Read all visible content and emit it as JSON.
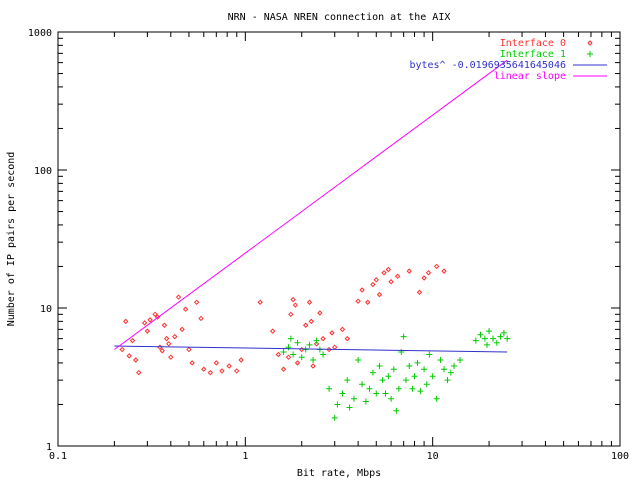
{
  "chart_data": {
    "type": "scatter",
    "title": "NRN - NASA NREN connection at the AIX",
    "xlabel": "Bit rate, Mbps",
    "ylabel": "Number of IP pairs per second",
    "x_scale": "log",
    "y_scale": "log",
    "xlim": [
      0.1,
      100
    ],
    "ylim": [
      1,
      1000
    ],
    "x_ticks": [
      {
        "value": 0.1,
        "label": "0.1"
      },
      {
        "value": 1,
        "label": "1"
      },
      {
        "value": 10,
        "label": "10"
      },
      {
        "value": 100,
        "label": "100"
      }
    ],
    "y_ticks": [
      {
        "value": 1,
        "label": "1"
      },
      {
        "value": 10,
        "label": "10"
      },
      {
        "value": 100,
        "label": "100"
      },
      {
        "value": 1000,
        "label": "1000"
      }
    ],
    "legend_position": "top-right",
    "series": [
      {
        "name": "Interface 0",
        "kind": "points",
        "marker": "diamond",
        "color": "#ff3030",
        "points": [
          [
            0.22,
            5.0
          ],
          [
            0.23,
            8.0
          ],
          [
            0.24,
            4.5
          ],
          [
            0.25,
            5.8
          ],
          [
            0.26,
            4.2
          ],
          [
            0.27,
            3.4
          ],
          [
            0.29,
            7.8
          ],
          [
            0.3,
            6.8
          ],
          [
            0.31,
            8.2
          ],
          [
            0.33,
            9.0
          ],
          [
            0.34,
            8.6
          ],
          [
            0.35,
            5.2
          ],
          [
            0.36,
            4.9
          ],
          [
            0.37,
            7.5
          ],
          [
            0.38,
            6.0
          ],
          [
            0.39,
            5.5
          ],
          [
            0.4,
            4.4
          ],
          [
            0.42,
            6.2
          ],
          [
            0.44,
            12.0
          ],
          [
            0.46,
            7.0
          ],
          [
            0.48,
            9.8
          ],
          [
            0.5,
            5.0
          ],
          [
            0.52,
            4.0
          ],
          [
            0.55,
            11.0
          ],
          [
            0.58,
            8.4
          ],
          [
            0.6,
            3.6
          ],
          [
            0.65,
            3.4
          ],
          [
            0.7,
            4.0
          ],
          [
            0.75,
            3.5
          ],
          [
            0.82,
            3.8
          ],
          [
            0.9,
            3.5
          ],
          [
            0.95,
            4.2
          ],
          [
            1.2,
            11.0
          ],
          [
            1.4,
            6.8
          ],
          [
            1.5,
            4.6
          ],
          [
            1.6,
            3.6
          ],
          [
            1.7,
            4.4
          ],
          [
            1.75,
            9.0
          ],
          [
            1.8,
            11.5
          ],
          [
            1.85,
            10.5
          ],
          [
            1.9,
            4.0
          ],
          [
            2.0,
            5.0
          ],
          [
            2.1,
            7.5
          ],
          [
            2.2,
            11.0
          ],
          [
            2.25,
            8.0
          ],
          [
            2.3,
            3.8
          ],
          [
            2.4,
            5.5
          ],
          [
            2.5,
            9.2
          ],
          [
            2.6,
            6.0
          ],
          [
            2.8,
            5.0
          ],
          [
            2.9,
            6.6
          ],
          [
            3.0,
            5.2
          ],
          [
            3.3,
            7.0
          ],
          [
            3.5,
            6.0
          ],
          [
            4.0,
            11.2
          ],
          [
            4.2,
            13.5
          ],
          [
            4.5,
            11.0
          ],
          [
            4.8,
            14.8
          ],
          [
            5.0,
            16.0
          ],
          [
            5.2,
            12.5
          ],
          [
            5.5,
            18.0
          ],
          [
            5.8,
            19.0
          ],
          [
            6.0,
            15.5
          ],
          [
            6.5,
            17.0
          ],
          [
            7.5,
            18.5
          ],
          [
            8.5,
            13.0
          ],
          [
            9.0,
            16.5
          ],
          [
            9.5,
            18.0
          ],
          [
            10.5,
            20.0
          ],
          [
            11.5,
            18.5
          ]
        ]
      },
      {
        "name": "Interface 1",
        "kind": "points",
        "marker": "plus",
        "color": "#00cc00",
        "points": [
          [
            1.6,
            4.8
          ],
          [
            1.7,
            5.2
          ],
          [
            1.75,
            6.0
          ],
          [
            1.8,
            4.6
          ],
          [
            1.9,
            5.6
          ],
          [
            2.0,
            4.4
          ],
          [
            2.1,
            5.0
          ],
          [
            2.2,
            5.4
          ],
          [
            2.3,
            4.2
          ],
          [
            2.4,
            5.8
          ],
          [
            2.5,
            5.0
          ],
          [
            2.6,
            4.6
          ],
          [
            2.8,
            2.6
          ],
          [
            3.0,
            1.6
          ],
          [
            3.1,
            2.0
          ],
          [
            3.3,
            2.4
          ],
          [
            3.5,
            3.0
          ],
          [
            3.6,
            1.9
          ],
          [
            3.8,
            2.2
          ],
          [
            4.0,
            4.2
          ],
          [
            4.2,
            2.8
          ],
          [
            4.4,
            2.1
          ],
          [
            4.6,
            2.6
          ],
          [
            4.8,
            3.4
          ],
          [
            5.0,
            2.4
          ],
          [
            5.2,
            3.8
          ],
          [
            5.4,
            3.0
          ],
          [
            5.6,
            2.4
          ],
          [
            5.8,
            3.2
          ],
          [
            6.0,
            2.2
          ],
          [
            6.2,
            3.6
          ],
          [
            6.4,
            1.8
          ],
          [
            6.6,
            2.6
          ],
          [
            6.8,
            4.8
          ],
          [
            7.0,
            6.2
          ],
          [
            7.2,
            3.0
          ],
          [
            7.5,
            3.8
          ],
          [
            7.8,
            2.6
          ],
          [
            8.0,
            3.2
          ],
          [
            8.3,
            4.0
          ],
          [
            8.6,
            2.5
          ],
          [
            9.0,
            3.6
          ],
          [
            9.3,
            2.8
          ],
          [
            9.6,
            4.6
          ],
          [
            10.0,
            3.2
          ],
          [
            10.5,
            2.2
          ],
          [
            11.0,
            4.2
          ],
          [
            11.5,
            3.6
          ],
          [
            12.0,
            3.0
          ],
          [
            12.5,
            3.4
          ],
          [
            13.0,
            3.8
          ],
          [
            14.0,
            4.2
          ],
          [
            17.0,
            5.8
          ],
          [
            18.0,
            6.4
          ],
          [
            19.0,
            6.0
          ],
          [
            19.5,
            5.4
          ],
          [
            20.0,
            6.8
          ],
          [
            21.0,
            6.0
          ],
          [
            22.0,
            5.6
          ],
          [
            23.0,
            6.2
          ],
          [
            24.0,
            6.6
          ],
          [
            25.0,
            6.0
          ]
        ]
      },
      {
        "name": "bytes^ -0.0196935641645046",
        "kind": "line",
        "color": "#3030cc",
        "points": [
          [
            0.2,
            5.3
          ],
          [
            25,
            4.8
          ]
        ]
      },
      {
        "name": "linear slope",
        "kind": "line",
        "color": "#ff00ff",
        "points": [
          [
            0.2,
            5.0
          ],
          [
            25,
            625
          ]
        ]
      }
    ]
  }
}
